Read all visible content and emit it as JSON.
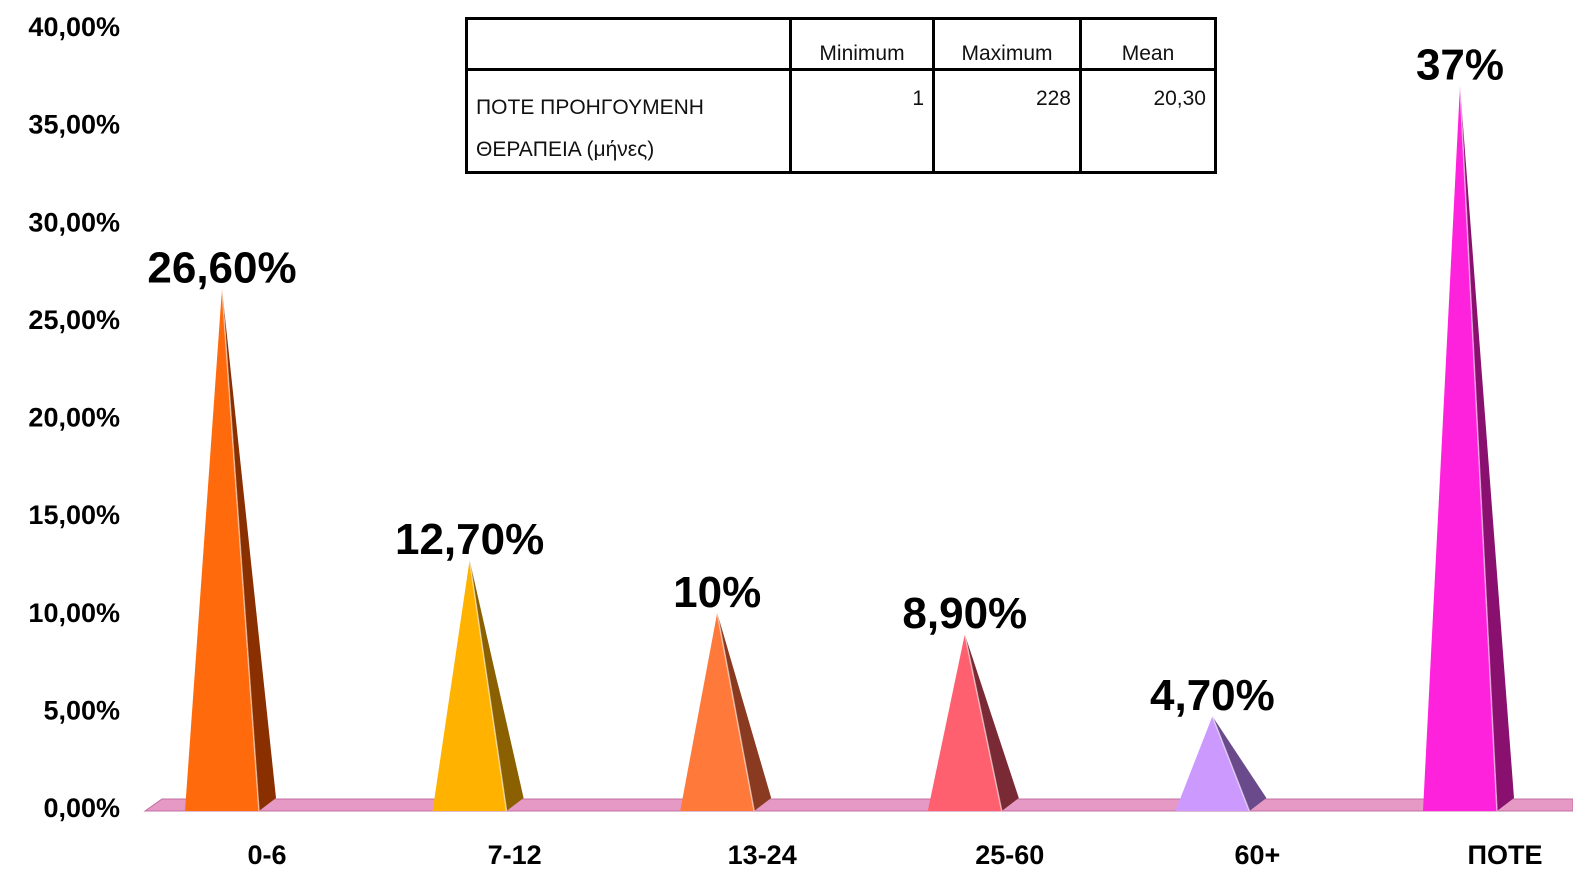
{
  "chart_data": {
    "type": "bar",
    "categories": [
      "0-6",
      "7-12",
      "13-24",
      "25-60",
      "60+",
      "ΠΟΤΕ"
    ],
    "values": [
      26.6,
      12.7,
      10,
      8.9,
      4.7,
      37
    ],
    "data_labels": [
      "26,60%",
      "12,70%",
      "10%",
      "8,90%",
      "4,70%",
      "37%"
    ],
    "ylim": [
      0,
      40
    ],
    "yticks": [
      0,
      5,
      10,
      15,
      20,
      25,
      30,
      35,
      40
    ],
    "ytick_labels": [
      "0,00%",
      "5,00%",
      "10,00%",
      "15,00%",
      "20,00%",
      "25,00%",
      "30,00%",
      "35,00%",
      "40,00%"
    ],
    "title": "",
    "xlabel": "",
    "ylabel": "",
    "grid": false,
    "colors": [
      {
        "front": "#ff6a0d",
        "side": "#8a3000"
      },
      {
        "front": "#ffb300",
        "side": "#8a6000"
      },
      {
        "front": "#ff7a3a",
        "side": "#8a3a20"
      },
      {
        "front": "#ff6070",
        "side": "#7a2a35"
      },
      {
        "front": "#cc99ff",
        "side": "#6a4a8a"
      },
      {
        "front": "#ff22dd",
        "side": "#8a1070"
      }
    ],
    "floor_color": "#e699c4"
  },
  "table": {
    "headers": [
      "",
      "Minimum",
      "Maximum",
      "Mean"
    ],
    "row_label_line1": "ΠΟΤΕ ΠΡΟΗΓΟΥΜΕΝΗ",
    "row_label_line2": "ΘΕΡΑΠΕΙΑ (μήνες)",
    "minimum": "1",
    "maximum": "228",
    "mean": "20,30"
  }
}
